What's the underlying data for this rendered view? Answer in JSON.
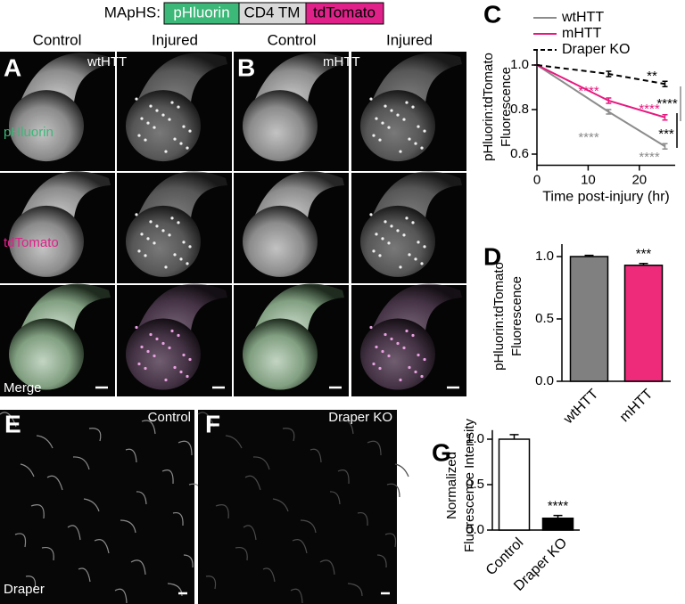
{
  "header": {
    "label": "MApHS:",
    "parts": [
      "pHluorin",
      "CD4 TM",
      "tdTomato"
    ]
  },
  "images": {
    "column_titles": [
      "Control",
      "Injured",
      "Control",
      "Injured"
    ],
    "panel_labels": [
      "A",
      "B",
      "E",
      "F"
    ],
    "genotypes": [
      "wtHTT",
      "mHTT"
    ],
    "row_labels": [
      "pHluorin",
      "tdTomato",
      "Merge"
    ],
    "condition_labels": [
      "Control",
      "Draper KO"
    ],
    "stain_label": "Draper"
  },
  "chart_data": [
    {
      "type": "line",
      "panel_label": "C",
      "ylabel": [
        "pHluorin:tdTomato",
        "Fluorescence"
      ],
      "xlabel": "Time post-injury (hr)",
      "x": [
        0,
        14,
        25
      ],
      "series": [
        {
          "name": "wtHTT",
          "color": "#8c8c8c",
          "style": "solid",
          "values": [
            1.0,
            0.79,
            0.635
          ],
          "errors": [
            0,
            0.01,
            0.012
          ]
        },
        {
          "name": "mHTT",
          "color": "#e6197f",
          "style": "solid",
          "values": [
            1.0,
            0.84,
            0.765
          ],
          "errors": [
            0,
            0.012,
            0.012
          ]
        },
        {
          "name": "Draper KO",
          "color": "#000000",
          "style": "dashed",
          "values": [
            1.0,
            0.96,
            0.915
          ],
          "errors": [
            0,
            0.012,
            0.012
          ]
        }
      ],
      "annotations": [
        {
          "text": "**",
          "color": "#000000"
        },
        {
          "text": "****",
          "color": "#e6197f"
        },
        {
          "text": "****",
          "color": "#e6197f"
        },
        {
          "text": "****",
          "color": "#8c8c8c"
        },
        {
          "text": "****",
          "color": "#8c8c8c"
        },
        {
          "text": "****",
          "color": "#000000"
        },
        {
          "text": "***",
          "color": "#000000"
        }
      ],
      "xlim": [
        0,
        27
      ],
      "xticks": [
        0,
        10,
        20
      ],
      "ylim": [
        0.55,
        1.07
      ],
      "yticks": [
        0.6,
        0.8,
        {
          "value": 1.0,
          "label": "1.0"
        }
      ]
    },
    {
      "type": "bar",
      "panel_label": "D",
      "ylabel": [
        "pHluorin:tdTomato",
        "Fluorescence"
      ],
      "categories": [
        "wtHTT",
        "mHTT"
      ],
      "values": [
        1.0,
        0.93
      ],
      "errors": [
        0.01,
        0.015
      ],
      "colors": [
        "#808080",
        "#ee2a7b"
      ],
      "edgecolor": "#000000",
      "annotations": [
        {
          "text": "***",
          "color": "#000000"
        }
      ],
      "ylim": [
        0,
        1.1
      ],
      "yticks": [
        {
          "value": 0,
          "label": "0.0"
        },
        0.5,
        {
          "value": 1.0,
          "label": "1.0"
        }
      ]
    },
    {
      "type": "bar",
      "panel_label": "G",
      "ylabel": [
        "Normalized",
        "Fluorescence Intensity"
      ],
      "categories": [
        "Control",
        "Draper KO"
      ],
      "values": [
        1.0,
        0.13
      ],
      "errors": [
        0.05,
        0.03
      ],
      "colors": [
        "#ffffff",
        "#000000"
      ],
      "edgecolor": "#000000",
      "annotations": [
        {
          "text": "****",
          "color": "#000000"
        }
      ],
      "ylim": [
        0,
        1.1
      ],
      "yticks": [
        {
          "value": 0,
          "label": "0.0"
        },
        0.5,
        {
          "value": 1.0,
          "label": "1.0"
        }
      ]
    }
  ]
}
